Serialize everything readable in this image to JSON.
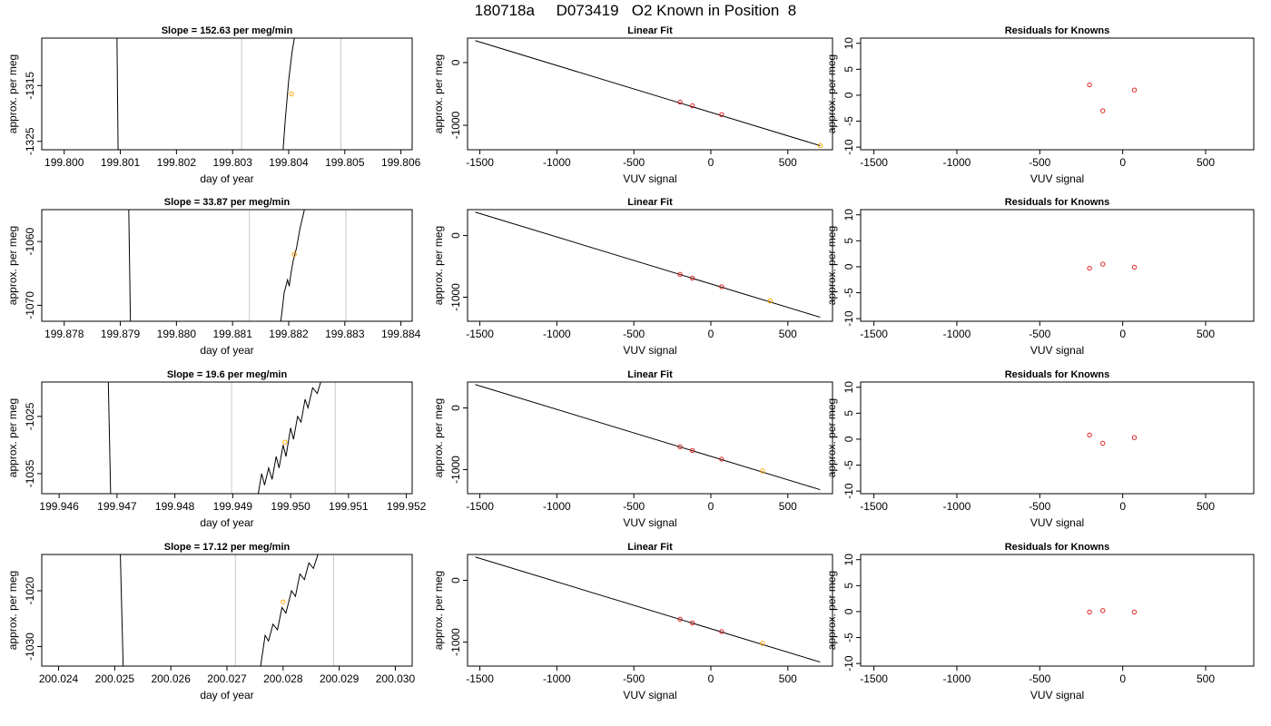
{
  "page_title": "180718a     D073419   O2 Known in Position  8",
  "colors": {
    "data_line": "#000000",
    "window_line": "#c8c8c8",
    "sample_point": "#ffa500",
    "known_point": "#dd2222",
    "axis": "#000000"
  },
  "chart_data": [
    {
      "type": "line",
      "title": "Slope =  152.63  per meg/min",
      "xlabel": "day of year",
      "ylabel": "approx. per meg",
      "xlim": [
        199.7996,
        199.8062
      ],
      "ylim": [
        -1326.5,
        -1306.5
      ],
      "xticks": [
        199.8,
        199.801,
        199.802,
        199.803,
        199.804,
        199.805,
        199.806
      ],
      "xtick_labels": [
        "199.800",
        "199.801",
        "199.802",
        "199.803",
        "199.804",
        "199.805",
        "199.806"
      ],
      "yticks": [
        -1315,
        -1325
      ],
      "ytick_labels": [
        "-1315",
        "-1325"
      ],
      "vlines": [
        199.80316,
        199.80493
      ],
      "segments": [
        [
          [
            199.80094,
            -1306.5
          ],
          [
            199.80096,
            -1326.5
          ]
        ],
        [
          [
            199.8039,
            -1326.5
          ],
          [
            199.80394,
            -1321
          ],
          [
            199.804,
            -1314
          ],
          [
            199.80406,
            -1309
          ],
          [
            199.8041,
            -1306.5
          ]
        ]
      ],
      "points": [
        [
          199.80405,
          -1316.5
        ]
      ]
    },
    {
      "type": "scatter",
      "title": "Linear Fit",
      "xlabel": "VUV signal",
      "ylabel": "approx. per meg",
      "xlim": [
        -1580,
        790
      ],
      "ylim": [
        -1390,
        390
      ],
      "xticks": [
        -1500,
        -1000,
        -500,
        0,
        500
      ],
      "xtick_labels": [
        "-1500",
        "-1000",
        "-500",
        "0",
        "500"
      ],
      "yticks": [
        0,
        -1000
      ],
      "ytick_labels": [
        "0",
        "-1000"
      ],
      "fit_line": [
        [
          -1530,
          350
        ],
        [
          710,
          -1325
        ]
      ],
      "known_points": [
        [
          -200,
          -630
        ],
        [
          -120,
          -690
        ],
        [
          70,
          -830
        ]
      ],
      "sample_points": [
        [
          710,
          -1325
        ]
      ]
    },
    {
      "type": "scatter",
      "title": "Residuals for Knowns",
      "xlabel": "VUV signal",
      "ylabel": "approx. per meg",
      "xlim": [
        -1580,
        790
      ],
      "ylim": [
        -10.5,
        11
      ],
      "xticks": [
        -1500,
        -1000,
        -500,
        0,
        500
      ],
      "xtick_labels": [
        "-1500",
        "-1000",
        "-500",
        "0",
        "500"
      ],
      "yticks": [
        10,
        5,
        0,
        -5,
        -10
      ],
      "ytick_labels": [
        "10",
        "5",
        "0",
        "-5",
        "-10"
      ],
      "known_points": [
        [
          -200,
          2.0
        ],
        [
          -120,
          -3.0
        ],
        [
          70,
          1.0
        ]
      ]
    },
    {
      "type": "line",
      "title": "Slope =  33.87  per meg/min",
      "xlabel": "day of year",
      "ylabel": "approx. per meg",
      "xlim": [
        199.8776,
        199.8842
      ],
      "ylim": [
        -1072.5,
        -1055
      ],
      "xticks": [
        199.878,
        199.879,
        199.88,
        199.881,
        199.882,
        199.883,
        199.884
      ],
      "xtick_labels": [
        "199.878",
        "199.879",
        "199.880",
        "199.881",
        "199.882",
        "199.883",
        "199.884"
      ],
      "yticks": [
        -1060,
        -1070
      ],
      "ytick_labels": [
        "-1060",
        "-1070"
      ],
      "vlines": [
        199.8813,
        199.88302
      ],
      "segments": [
        [
          [
            199.87915,
            -1055
          ],
          [
            199.87918,
            -1072.5
          ]
        ],
        [
          [
            199.88186,
            -1072.5
          ],
          [
            199.88192,
            -1068
          ],
          [
            199.88198,
            -1066
          ],
          [
            199.88201,
            -1067
          ],
          [
            199.88204,
            -1065
          ],
          [
            199.88208,
            -1063
          ],
          [
            199.88214,
            -1061
          ],
          [
            199.8822,
            -1058
          ],
          [
            199.88228,
            -1055
          ]
        ]
      ],
      "points": [
        [
          199.8821,
          -1062.0
        ]
      ]
    },
    {
      "type": "scatter",
      "title": "Linear Fit",
      "xlabel": "VUV signal",
      "ylabel": "approx. per meg",
      "xlim": [
        -1580,
        790
      ],
      "ylim": [
        -1390,
        420
      ],
      "xticks": [
        -1500,
        -1000,
        -500,
        0,
        500
      ],
      "xtick_labels": [
        "-1500",
        "-1000",
        "-500",
        "0",
        "500"
      ],
      "yticks": [
        0,
        -1000
      ],
      "ytick_labels": [
        "0",
        "-1000"
      ],
      "fit_line": [
        [
          -1530,
          380
        ],
        [
          710,
          -1325
        ]
      ],
      "known_points": [
        [
          -200,
          -630
        ],
        [
          -120,
          -690
        ],
        [
          70,
          -830
        ]
      ],
      "sample_points": [
        [
          385,
          -1060
        ]
      ]
    },
    {
      "type": "scatter",
      "title": "Residuals for Knowns",
      "xlabel": "VUV signal",
      "ylabel": "approx. per meg",
      "xlim": [
        -1580,
        790
      ],
      "ylim": [
        -10.5,
        11
      ],
      "xticks": [
        -1500,
        -1000,
        -500,
        0,
        500
      ],
      "xtick_labels": [
        "-1500",
        "-1000",
        "-500",
        "0",
        "500"
      ],
      "yticks": [
        10,
        5,
        0,
        -5,
        -10
      ],
      "ytick_labels": [
        "10",
        "5",
        "0",
        "-5",
        "-10"
      ],
      "known_points": [
        [
          -200,
          -0.3
        ],
        [
          -120,
          0.5
        ],
        [
          70,
          -0.1
        ]
      ]
    },
    {
      "type": "line",
      "title": "Slope =  19.6  per meg/min",
      "xlabel": "day of year",
      "ylabel": "approx. per meg",
      "xlim": [
        199.9457,
        199.9521
      ],
      "ylim": [
        -1038.5,
        -1019
      ],
      "xticks": [
        199.946,
        199.947,
        199.948,
        199.949,
        199.95,
        199.951,
        199.952
      ],
      "xtick_labels": [
        "199.946",
        "199.947",
        "199.948",
        "199.949",
        "199.950",
        "199.951",
        "199.952"
      ],
      "yticks": [
        -1025,
        -1035
      ],
      "ytick_labels": [
        "-1025",
        "-1035"
      ],
      "vlines": [
        199.94898,
        199.95077
      ],
      "segments": [
        [
          [
            199.94685,
            -1019
          ],
          [
            199.94689,
            -1038.5
          ]
        ],
        [
          [
            199.94944,
            -1038.5
          ],
          [
            199.9495,
            -1035
          ],
          [
            199.94955,
            -1037
          ],
          [
            199.94962,
            -1034
          ],
          [
            199.94968,
            -1036
          ],
          [
            199.94975,
            -1032
          ],
          [
            199.9498,
            -1034
          ],
          [
            199.94987,
            -1030
          ],
          [
            199.94992,
            -1032
          ],
          [
            199.95,
            -1027
          ],
          [
            199.95005,
            -1029
          ],
          [
            199.95012,
            -1025
          ],
          [
            199.95018,
            -1026
          ],
          [
            199.95025,
            -1022
          ],
          [
            199.9503,
            -1023.5
          ],
          [
            199.95038,
            -1020
          ],
          [
            199.95046,
            -1021
          ],
          [
            199.95052,
            -1019
          ]
        ]
      ],
      "points": [
        [
          199.9499,
          -1029.5
        ]
      ]
    },
    {
      "type": "scatter",
      "title": "Linear Fit",
      "xlabel": "VUV signal",
      "ylabel": "approx. per meg",
      "xlim": [
        -1580,
        790
      ],
      "ylim": [
        -1390,
        420
      ],
      "xticks": [
        -1500,
        -1000,
        -500,
        0,
        500
      ],
      "xtick_labels": [
        "-1500",
        "-1000",
        "-500",
        "0",
        "500"
      ],
      "yticks": [
        0,
        -1000
      ],
      "ytick_labels": [
        "0",
        "-1000"
      ],
      "fit_line": [
        [
          -1530,
          380
        ],
        [
          710,
          -1325
        ]
      ],
      "known_points": [
        [
          -200,
          -630
        ],
        [
          -120,
          -690
        ],
        [
          70,
          -830
        ]
      ],
      "sample_points": [
        [
          335,
          -1020
        ]
      ]
    },
    {
      "type": "scatter",
      "title": "Residuals for Knowns",
      "xlabel": "VUV signal",
      "ylabel": "approx. per meg",
      "xlim": [
        -1580,
        790
      ],
      "ylim": [
        -10.5,
        11
      ],
      "xticks": [
        -1500,
        -1000,
        -500,
        0,
        500
      ],
      "xtick_labels": [
        "-1500",
        "-1000",
        "-500",
        "0",
        "500"
      ],
      "yticks": [
        10,
        5,
        0,
        -5,
        -10
      ],
      "ytick_labels": [
        "10",
        "5",
        "0",
        "-5",
        "-10"
      ],
      "known_points": [
        [
          -200,
          0.8
        ],
        [
          -120,
          -0.8
        ],
        [
          70,
          0.3
        ]
      ]
    },
    {
      "type": "line",
      "title": "Slope =  17.12  per meg/min",
      "xlabel": "day of year",
      "ylabel": "approx. per meg",
      "xlim": [
        200.0237,
        200.0303
      ],
      "ylim": [
        -1033.5,
        -1013.5
      ],
      "xticks": [
        200.024,
        200.025,
        200.026,
        200.027,
        200.028,
        200.029,
        200.03
      ],
      "xtick_labels": [
        "200.024",
        "200.025",
        "200.026",
        "200.027",
        "200.028",
        "200.029",
        "200.030"
      ],
      "yticks": [
        -1020,
        -1030
      ],
      "ytick_labels": [
        "-1020",
        "-1030"
      ],
      "vlines": [
        200.02715,
        200.0289
      ],
      "segments": [
        [
          [
            200.0251,
            -1013.5
          ],
          [
            200.02515,
            -1033.5
          ]
        ],
        [
          [
            200.0276,
            -1033.5
          ],
          [
            200.02768,
            -1028
          ],
          [
            200.02774,
            -1029
          ],
          [
            200.02782,
            -1026
          ],
          [
            200.0279,
            -1027
          ],
          [
            200.02798,
            -1023
          ],
          [
            200.02805,
            -1024
          ],
          [
            200.02815,
            -1020
          ],
          [
            200.02822,
            -1021
          ],
          [
            200.0283,
            -1017
          ],
          [
            200.02838,
            -1018
          ],
          [
            200.02846,
            -1015
          ],
          [
            200.02854,
            -1016
          ],
          [
            200.02862,
            -1013.5
          ]
        ]
      ],
      "points": [
        [
          200.028,
          -1022.0
        ]
      ]
    },
    {
      "type": "scatter",
      "title": "Linear Fit",
      "xlabel": "VUV signal",
      "ylabel": "approx. per meg",
      "xlim": [
        -1580,
        790
      ],
      "ylim": [
        -1390,
        420
      ],
      "xticks": [
        -1500,
        -1000,
        -500,
        0,
        500
      ],
      "xtick_labels": [
        "-1500",
        "-1000",
        "-500",
        "0",
        "500"
      ],
      "yticks": [
        0,
        -1000
      ],
      "ytick_labels": [
        "0",
        "-1000"
      ],
      "fit_line": [
        [
          -1530,
          380
        ],
        [
          710,
          -1325
        ]
      ],
      "known_points": [
        [
          -200,
          -630
        ],
        [
          -120,
          -690
        ],
        [
          70,
          -830
        ]
      ],
      "sample_points": [
        [
          335,
          -1020
        ]
      ]
    },
    {
      "type": "scatter",
      "title": "Residuals for Knowns",
      "xlabel": "VUV signal",
      "ylabel": "approx. per meg",
      "xlim": [
        -1580,
        790
      ],
      "ylim": [
        -10.5,
        11
      ],
      "xticks": [
        -1500,
        -1000,
        -500,
        0,
        500
      ],
      "xtick_labels": [
        "-1500",
        "-1000",
        "-500",
        "0",
        "500"
      ],
      "yticks": [
        10,
        5,
        0,
        -5,
        -10
      ],
      "ytick_labels": [
        "10",
        "5",
        "0",
        "-5",
        "-10"
      ],
      "known_points": [
        [
          -200,
          -0.1
        ],
        [
          -120,
          0.2
        ],
        [
          70,
          -0.1
        ]
      ]
    }
  ]
}
